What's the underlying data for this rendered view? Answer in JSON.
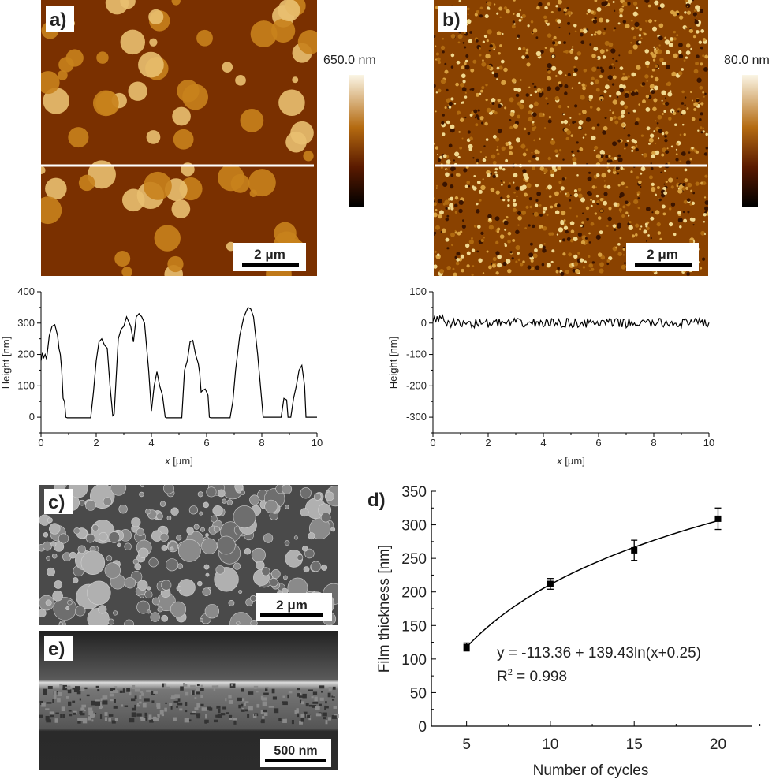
{
  "panels": {
    "a": {
      "label": "a)",
      "scalebar": "2 μm",
      "colorbar_max": "650.0 nm"
    },
    "b": {
      "label": "b)",
      "scalebar": "2 μm",
      "colorbar_max": "80.0 nm"
    },
    "c": {
      "label": "c)",
      "scalebar": "2 μm"
    },
    "e": {
      "label": "e)",
      "scalebar": "500 nm"
    }
  },
  "colors": {
    "afm_dark": "#1a0800",
    "afm_mid": "#8a3c00",
    "afm_light": "#f4e6b8",
    "line": "#000000"
  },
  "chart_data": [
    {
      "id": "profile-a",
      "type": "line",
      "xlabel_var": "x",
      "xlabel_unit": " [μm]",
      "ylabel": "Height [nm]",
      "xlim": [
        0,
        10
      ],
      "ylim": [
        -50,
        400
      ],
      "xticks": [
        0,
        2,
        4,
        6,
        8,
        10
      ],
      "yticks": [
        0,
        100,
        200,
        300,
        400
      ],
      "x": [
        0,
        0.05,
        0.1,
        0.15,
        0.2,
        0.3,
        0.4,
        0.5,
        0.6,
        0.65,
        0.7,
        0.75,
        0.8,
        0.85,
        0.9,
        0.95,
        1.8,
        1.9,
        2.0,
        2.1,
        2.2,
        2.3,
        2.4,
        2.5,
        2.6,
        2.65,
        2.8,
        2.9,
        3.0,
        3.1,
        3.25,
        3.35,
        3.45,
        3.55,
        3.65,
        3.75,
        3.85,
        3.9,
        4.0,
        4.1,
        4.2,
        4.3,
        4.4,
        4.5,
        4.55,
        4.6,
        5.1,
        5.2,
        5.3,
        5.4,
        5.5,
        5.6,
        5.7,
        5.75,
        5.8,
        5.85,
        5.95,
        6.05,
        6.1,
        6.15,
        6.85,
        6.95,
        7.05,
        7.2,
        7.35,
        7.5,
        7.6,
        7.7,
        7.85,
        7.95,
        8.05,
        8.7,
        8.8,
        8.9,
        8.95,
        9.05,
        9.15,
        9.25,
        9.35,
        9.45,
        9.55,
        9.6,
        10
      ],
      "y": [
        180,
        205,
        190,
        200,
        185,
        260,
        290,
        295,
        260,
        220,
        200,
        150,
        60,
        50,
        0,
        -2,
        -2,
        80,
        180,
        240,
        250,
        230,
        220,
        100,
        5,
        10,
        250,
        280,
        290,
        320,
        290,
        240,
        320,
        330,
        320,
        300,
        200,
        150,
        20,
        100,
        145,
        100,
        70,
        0,
        -2,
        -2,
        -2,
        150,
        180,
        240,
        245,
        200,
        170,
        140,
        80,
        85,
        90,
        70,
        0,
        -2,
        -2,
        50,
        150,
        260,
        320,
        350,
        345,
        320,
        200,
        100,
        0,
        0,
        60,
        55,
        0,
        0,
        60,
        100,
        150,
        165,
        100,
        0,
        0
      ]
    },
    {
      "id": "profile-b",
      "type": "line",
      "xlabel_var": "x",
      "xlabel_unit": " [μm]",
      "ylabel": "Height [nm]",
      "xlim": [
        0,
        10
      ],
      "ylim": [
        -350,
        100
      ],
      "xticks": [
        0,
        2,
        4,
        6,
        8,
        10
      ],
      "yticks": [
        -300,
        -200,
        -100,
        0,
        100
      ],
      "noise_amplitude_nm": 15
    },
    {
      "id": "thickness-vs-cycles",
      "type": "scatter",
      "label": "d)",
      "xlabel": "Number of cycles",
      "ylabel": "Film thickness [nm]",
      "xlim": [
        2.9,
        22
      ],
      "ylim": [
        0,
        350
      ],
      "xticks": [
        5,
        10,
        15,
        20
      ],
      "yticks": [
        0,
        50,
        100,
        150,
        200,
        250,
        300,
        350
      ],
      "x": [
        5,
        10,
        15,
        20
      ],
      "y": [
        118,
        212,
        262,
        309
      ],
      "yerr": [
        6,
        8,
        15,
        16
      ],
      "fit": {
        "a": -113.36,
        "b": 139.43,
        "c": 0.25,
        "model": "y = a + b ln(x + c)"
      },
      "equation": "y = -113.36 + 139.43ln(x+0.25)",
      "r2_prefix": "R",
      "r2_sup": "2",
      "r2_value": " = 0.998"
    }
  ]
}
